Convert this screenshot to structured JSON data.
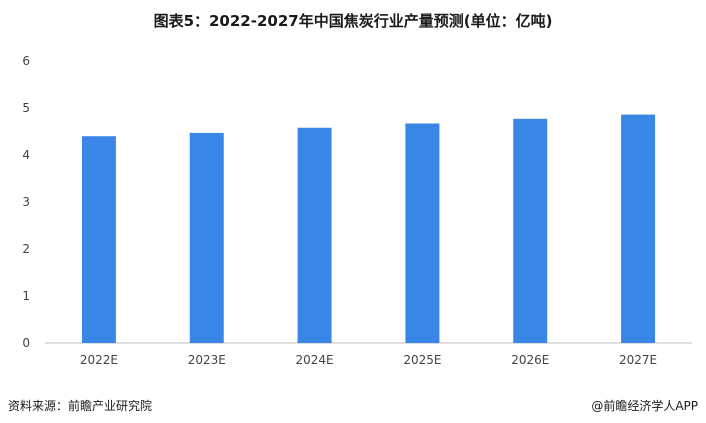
{
  "chart_data": {
    "type": "bar",
    "title": "图表5：2022-2027年中国焦炭行业产量预测(单位：亿吨)",
    "categories": [
      "2022E",
      "2023E",
      "2024E",
      "2025E",
      "2026E",
      "2027E"
    ],
    "values": [
      4.4,
      4.47,
      4.58,
      4.67,
      4.77,
      4.86
    ],
    "ylim": [
      0,
      6
    ],
    "yticks": [
      "0",
      "1",
      "2",
      "3",
      "4",
      "5",
      "6"
    ],
    "grid": false,
    "bar_color": "#3a86e6"
  },
  "footer": {
    "source": "资料来源：前瞻产业研究院",
    "brand": "@前瞻经济学人APP"
  }
}
